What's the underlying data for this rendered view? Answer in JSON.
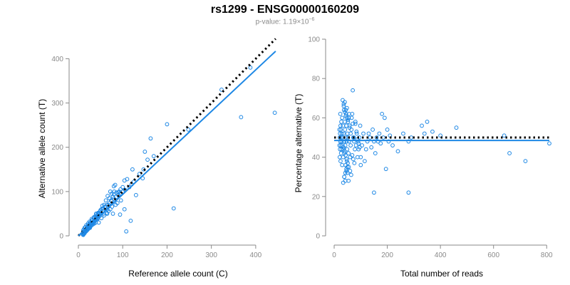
{
  "title": "rs1299 - ENSG00000160209",
  "subtitle": {
    "prefix": "p-value: 1.19",
    "times": "×10",
    "exponent": "−6"
  },
  "colors": {
    "points": "#1E88E5",
    "fit_line": "#1E88E5",
    "reference_line": "#000000",
    "axis": "#8a8a8a"
  },
  "chart_data": [
    {
      "type": "scatter",
      "xlabel": "Reference allele count (C)",
      "ylabel": "Alternative allele count (T)",
      "xlim": [
        0,
        450
      ],
      "ylim": [
        0,
        420
      ],
      "xticks": [
        0,
        100,
        200,
        300,
        400
      ],
      "yticks": [
        0,
        100,
        200,
        300,
        400
      ],
      "grid": false,
      "lines": [
        {
          "kind": "dotted",
          "color": "#000000",
          "x": [
            0,
            445
          ],
          "y": [
            0,
            445
          ]
        },
        {
          "kind": "solid",
          "color": "#1E88E5",
          "x": [
            0,
            445
          ],
          "y": [
            0,
            417
          ]
        }
      ],
      "points": {
        "x": [
          388,
          443,
          367,
          323,
          248,
          200,
          163,
          156,
          170,
          150,
          147,
          138,
          145,
          122,
          110,
          104,
          100,
          95,
          92,
          90,
          86,
          83,
          81,
          80,
          80,
          78,
          75,
          74,
          72,
          70,
          68,
          66,
          65,
          62,
          60,
          58,
          56,
          55,
          54,
          52,
          50,
          49,
          48,
          46,
          45,
          44,
          43,
          42,
          41,
          40,
          39,
          38,
          37,
          36,
          35,
          34,
          33,
          32,
          31,
          30,
          30,
          29,
          28,
          27,
          26,
          25,
          24,
          23,
          22,
          22,
          21,
          20,
          20,
          19,
          18,
          17,
          16,
          16,
          15,
          15,
          14,
          14,
          13,
          12,
          12,
          11,
          11,
          10,
          10,
          18,
          22,
          25,
          30,
          35,
          40,
          45,
          50,
          55,
          60,
          65,
          70,
          75,
          80,
          85,
          90,
          95,
          100,
          105,
          115,
          120,
          125,
          130,
          215,
          118,
          104,
          94,
          78,
          65,
          57,
          48,
          40,
          34,
          28,
          24,
          20,
          17,
          14,
          12,
          11,
          26,
          32,
          38,
          44,
          46,
          52,
          58,
          64,
          68,
          72,
          76,
          84,
          88,
          96,
          108
        ],
        "y": [
          380,
          278,
          268,
          330,
          240,
          252,
          220,
          172,
          180,
          190,
          150,
          140,
          130,
          150,
          128,
          125,
          110,
          105,
          100,
          98,
          98,
          115,
          100,
          94,
          112,
          88,
          95,
          80,
          100,
          85,
          70,
          90,
          60,
          80,
          65,
          70,
          62,
          55,
          68,
          60,
          50,
          55,
          45,
          52,
          50,
          40,
          38,
          46,
          36,
          42,
          30,
          44,
          34,
          28,
          40,
          32,
          26,
          36,
          30,
          24,
          34,
          28,
          22,
          30,
          20,
          26,
          18,
          22,
          16,
          24,
          14,
          20,
          18,
          12,
          16,
          10,
          14,
          20,
          8,
          12,
          18,
          6,
          10,
          14,
          4,
          8,
          12,
          5,
          3,
          24,
          28,
          32,
          38,
          42,
          48,
          52,
          58,
          62,
          66,
          70,
          74,
          78,
          84,
          88,
          92,
          96,
          100,
          104,
          110,
          116,
          122,
          92,
          62,
          34,
          60,
          48,
          50,
          50,
          50,
          50,
          50,
          30,
          25,
          20,
          15,
          10,
          8,
          6,
          2,
          18,
          28,
          36,
          42,
          30,
          40,
          46,
          52,
          56,
          60,
          66,
          70,
          74,
          80,
          10
        ]
      }
    },
    {
      "type": "scatter",
      "xlabel": "Total number of reads",
      "ylabel": "Percentage alternative (T)",
      "xlim": [
        0,
        810
      ],
      "ylim": [
        0,
        100
      ],
      "xticks": [
        0,
        200,
        400,
        600,
        800
      ],
      "yticks": [
        0,
        20,
        40,
        60,
        80,
        100
      ],
      "grid": false,
      "lines": [
        {
          "kind": "dotted",
          "color": "#000000",
          "x": [
            0,
            810
          ],
          "y": [
            50,
            50
          ]
        },
        {
          "kind": "solid",
          "color": "#1E88E5",
          "x": [
            0,
            810
          ],
          "y": [
            48.5,
            48.5
          ]
        }
      ],
      "points": {
        "x": [
          810,
          720,
          660,
          640,
          460,
          400,
          370,
          350,
          340,
          330,
          290,
          280,
          260,
          240,
          220,
          210,
          205,
          200,
          195,
          190,
          185,
          180,
          175,
          170,
          165,
          160,
          155,
          150,
          145,
          140,
          135,
          130,
          125,
          120,
          115,
          110,
          105,
          100,
          98,
          95,
          92,
          90,
          88,
          85,
          82,
          80,
          78,
          75,
          72,
          70,
          68,
          65,
          62,
          60,
          58,
          56,
          55,
          54,
          52,
          50,
          49,
          48,
          47,
          46,
          45,
          44,
          43,
          42,
          41,
          40,
          39,
          38,
          37,
          36,
          35,
          34,
          33,
          32,
          31,
          30,
          30,
          29,
          28,
          28,
          27,
          26,
          26,
          25,
          25,
          24,
          24,
          23,
          23,
          22,
          22,
          21,
          21,
          20,
          20,
          38,
          42,
          46,
          50,
          54,
          36,
          40,
          44,
          48,
          52,
          56,
          34,
          38,
          42,
          46,
          50,
          58,
          62,
          66,
          70,
          74,
          32,
          36,
          40,
          44,
          48,
          52,
          35,
          39,
          43,
          47,
          51,
          55,
          60,
          64,
          68,
          72,
          76,
          80,
          84,
          88,
          92,
          96,
          100,
          150,
          280
        ],
        "y": [
          47,
          38,
          42,
          51,
          55,
          51,
          53,
          58,
          52,
          56,
          50,
          48,
          52,
          43,
          46,
          51,
          48,
          54,
          34,
          60,
          50,
          62,
          47,
          52,
          48,
          50,
          42,
          48,
          54,
          45,
          50,
          52,
          48,
          44,
          38,
          52,
          46,
          36,
          56,
          50,
          44,
          48,
          40,
          52,
          46,
          58,
          44,
          48,
          50,
          74,
          62,
          54,
          46,
          40,
          56,
          48,
          60,
          42,
          50,
          52,
          44,
          38,
          48,
          56,
          62,
          50,
          36,
          46,
          54,
          58,
          42,
          48,
          64,
          52,
          44,
          40,
          56,
          50,
          46,
          60,
          36,
          52,
          44,
          48,
          58,
          50,
          42,
          54,
          46,
          38,
          56,
          48,
          62,
          44,
          52,
          50,
          40,
          46,
          54,
          30,
          32,
          34,
          35,
          28,
          66,
          68,
          64,
          60,
          58,
          62,
          27,
          30,
          28,
          33,
          32,
          55,
          52,
          60,
          57,
          50,
          69,
          67,
          63,
          61,
          65,
          59,
          45,
          43,
          41,
          39,
          37,
          35,
          33,
          31,
          41,
          39,
          37,
          57,
          53,
          49,
          47,
          45,
          40,
          22,
          22
        ]
      }
    }
  ]
}
